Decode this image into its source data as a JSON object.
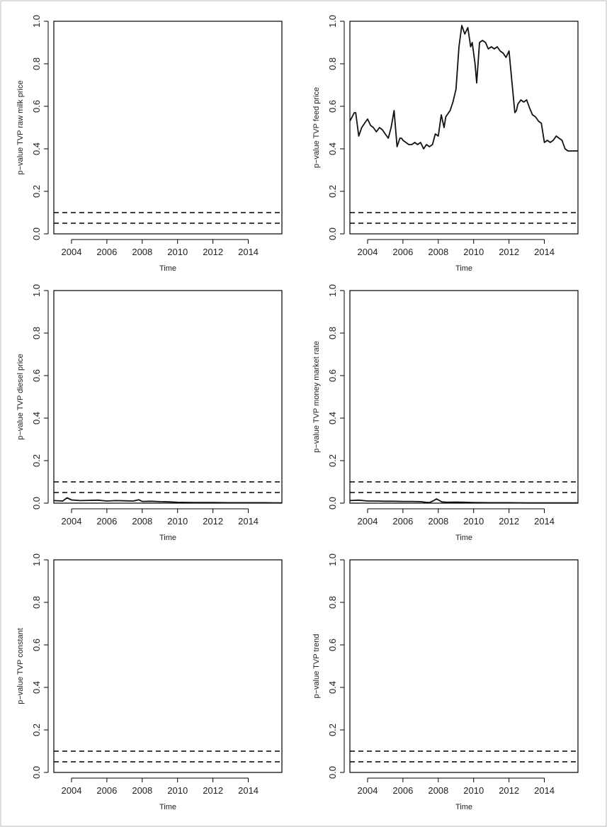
{
  "chart_data": [
    {
      "type": "line",
      "xlabel": "Time",
      "ylabel": "p−value TVP raw milk price",
      "xlim": [
        2003.0,
        2015.9
      ],
      "ylim": [
        0,
        1
      ],
      "xticks": [
        2004,
        2006,
        2008,
        2010,
        2012,
        2014
      ],
      "yticks": [
        "0.0",
        "0.2",
        "0.4",
        "0.6",
        "0.8",
        "1.0"
      ],
      "reference_lines": [
        0.1,
        0.05
      ],
      "series": [
        {
          "x": [],
          "y": []
        }
      ]
    },
    {
      "type": "line",
      "xlabel": "Time",
      "ylabel": "p−value TVP feed price",
      "xlim": [
        2003.0,
        2015.9
      ],
      "ylim": [
        0,
        1
      ],
      "xticks": [
        2004,
        2006,
        2008,
        2010,
        2012,
        2014
      ],
      "yticks": [
        "0.0",
        "0.2",
        "0.4",
        "0.6",
        "0.8",
        "1.0"
      ],
      "reference_lines": [
        0.1,
        0.05
      ],
      "series": [
        {
          "x": [
            2003.0,
            2003.25,
            2003.33,
            2003.5,
            2003.67,
            2003.83,
            2004.0,
            2004.17,
            2004.33,
            2004.5,
            2004.67,
            2004.83,
            2005.0,
            2005.17,
            2005.33,
            2005.5,
            2005.67,
            2005.83,
            2005.92,
            2006.0,
            2006.17,
            2006.33,
            2006.5,
            2006.67,
            2006.83,
            2007.0,
            2007.17,
            2007.33,
            2007.5,
            2007.67,
            2007.83,
            2008.0,
            2008.17,
            2008.33,
            2008.42,
            2008.5,
            2008.67,
            2008.83,
            2009.0,
            2009.17,
            2009.33,
            2009.5,
            2009.67,
            2009.83,
            2009.92,
            2010.0,
            2010.08,
            2010.17,
            2010.33,
            2010.5,
            2010.67,
            2010.83,
            2011.0,
            2011.17,
            2011.33,
            2011.5,
            2011.67,
            2011.83,
            2012.0,
            2012.17,
            2012.33,
            2012.42,
            2012.5,
            2012.67,
            2012.83,
            2013.0,
            2013.17,
            2013.33,
            2013.5,
            2013.67,
            2013.83,
            2014.0,
            2014.17,
            2014.33,
            2014.5,
            2014.67,
            2014.83,
            2015.0,
            2015.17,
            2015.33,
            2015.5,
            2015.67,
            2015.9
          ],
          "y": [
            0.53,
            0.57,
            0.57,
            0.46,
            0.5,
            0.52,
            0.54,
            0.51,
            0.5,
            0.48,
            0.5,
            0.49,
            0.47,
            0.45,
            0.5,
            0.58,
            0.41,
            0.45,
            0.45,
            0.44,
            0.43,
            0.42,
            0.42,
            0.43,
            0.42,
            0.43,
            0.4,
            0.42,
            0.41,
            0.42,
            0.47,
            0.46,
            0.56,
            0.5,
            0.55,
            0.56,
            0.58,
            0.62,
            0.68,
            0.88,
            0.98,
            0.94,
            0.97,
            0.88,
            0.9,
            0.85,
            0.8,
            0.71,
            0.9,
            0.91,
            0.9,
            0.87,
            0.88,
            0.87,
            0.88,
            0.86,
            0.85,
            0.83,
            0.86,
            0.71,
            0.57,
            0.58,
            0.61,
            0.63,
            0.62,
            0.63,
            0.59,
            0.56,
            0.55,
            0.53,
            0.52,
            0.43,
            0.44,
            0.43,
            0.44,
            0.46,
            0.45,
            0.44,
            0.4,
            0.39,
            0.39,
            0.39,
            0.39
          ]
        }
      ]
    },
    {
      "type": "line",
      "xlabel": "Time",
      "ylabel": "p−value TVP diesel price",
      "xlim": [
        2003.0,
        2015.9
      ],
      "ylim": [
        0,
        1
      ],
      "xticks": [
        2004,
        2006,
        2008,
        2010,
        2012,
        2014
      ],
      "yticks": [
        "0.0",
        "0.2",
        "0.4",
        "0.6",
        "0.8",
        "1.0"
      ],
      "reference_lines": [
        0.1,
        0.05
      ],
      "series": [
        {
          "x": [
            2003.0,
            2003.5,
            2003.75,
            2004.0,
            2004.5,
            2005.0,
            2005.5,
            2006.0,
            2006.5,
            2007.0,
            2007.5,
            2007.8,
            2008.0,
            2008.5,
            2009.0,
            2009.5,
            2010.0,
            2011.0,
            2012.0,
            2013.0,
            2014.0,
            2015.0,
            2015.9
          ],
          "y": [
            0.012,
            0.01,
            0.025,
            0.015,
            0.012,
            0.013,
            0.014,
            0.01,
            0.012,
            0.011,
            0.01,
            0.016,
            0.008,
            0.009,
            0.007,
            0.006,
            0.004,
            0.003,
            0.003,
            0.002,
            0.002,
            0.002,
            0.001
          ]
        }
      ]
    },
    {
      "type": "line",
      "xlabel": "Time",
      "ylabel": "p−value TVP money market rate",
      "xlim": [
        2003.0,
        2015.9
      ],
      "ylim": [
        0,
        1
      ],
      "xticks": [
        2004,
        2006,
        2008,
        2010,
        2012,
        2014
      ],
      "yticks": [
        "0.0",
        "0.2",
        "0.4",
        "0.6",
        "0.8",
        "1.0"
      ],
      "reference_lines": [
        0.1,
        0.05
      ],
      "series": [
        {
          "x": [
            2003.0,
            2003.5,
            2004.0,
            2004.5,
            2005.0,
            2005.5,
            2006.0,
            2006.5,
            2007.0,
            2007.3,
            2007.5,
            2007.7,
            2007.9,
            2008.2,
            2008.5,
            2009.0,
            2009.5,
            2010.0,
            2011.0,
            2012.0,
            2013.0,
            2014.0,
            2015.0,
            2015.9
          ],
          "y": [
            0.012,
            0.014,
            0.01,
            0.01,
            0.009,
            0.009,
            0.008,
            0.008,
            0.007,
            0.004,
            0.003,
            0.01,
            0.02,
            0.006,
            0.004,
            0.005,
            0.004,
            0.003,
            0.002,
            0.002,
            0.001,
            0.001,
            0.001,
            0.001
          ]
        }
      ]
    },
    {
      "type": "line",
      "xlabel": "Time",
      "ylabel": "p−value TVP constant",
      "xlim": [
        2003.0,
        2015.9
      ],
      "ylim": [
        0,
        1
      ],
      "xticks": [
        2004,
        2006,
        2008,
        2010,
        2012,
        2014
      ],
      "yticks": [
        "0.0",
        "0.2",
        "0.4",
        "0.6",
        "0.8",
        "1.0"
      ],
      "reference_lines": [
        0.1,
        0.05
      ],
      "series": [
        {
          "x": [],
          "y": []
        }
      ]
    },
    {
      "type": "line",
      "xlabel": "Time",
      "ylabel": "p−value TVP trend",
      "xlim": [
        2003.0,
        2015.9
      ],
      "ylim": [
        0,
        1
      ],
      "xticks": [
        2004,
        2006,
        2008,
        2010,
        2012,
        2014
      ],
      "yticks": [
        "0.0",
        "0.2",
        "0.4",
        "0.6",
        "0.8",
        "1.0"
      ],
      "reference_lines": [
        0.1,
        0.05
      ],
      "series": [
        {
          "x": [],
          "y": []
        }
      ]
    }
  ]
}
